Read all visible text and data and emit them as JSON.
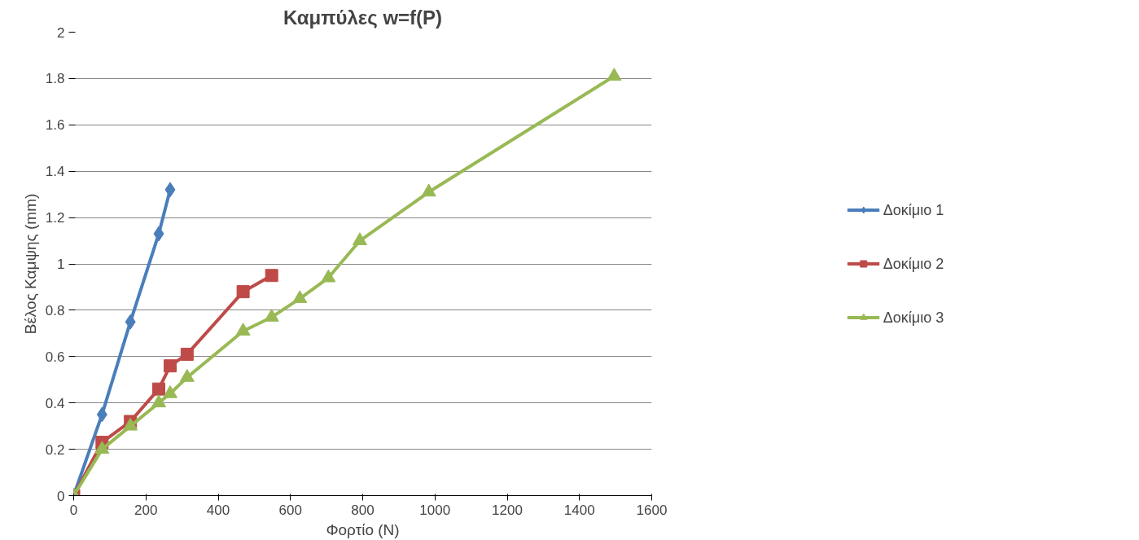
{
  "chart_data": {
    "type": "line",
    "title": "Καμπύλες w=f(P)",
    "xlabel": "Φορτίο (N)",
    "ylabel": "Βέλος Καμψης (mm)",
    "xlim": [
      0,
      1600
    ],
    "xticks": [
      0,
      200,
      400,
      600,
      800,
      1000,
      1200,
      1400,
      1600
    ],
    "ylim": [
      0,
      2
    ],
    "yticks": [
      0,
      0.2,
      0.4,
      0.6,
      0.8,
      1,
      1.2,
      1.4,
      1.6,
      1.8,
      2
    ],
    "grid": "y",
    "legend": "right",
    "series": [
      {
        "name": "Δοκίμιο 1",
        "color": "#4a7ebb",
        "marker": "diamond",
        "x": [
          0,
          78.5,
          157,
          235.5,
          267
        ],
        "values": [
          0,
          0.35,
          0.75,
          1.13,
          1.32
        ]
      },
      {
        "name": "Δοκίμιο 2",
        "color": "#be4b48",
        "marker": "square",
        "x": [
          0,
          78.5,
          157,
          235.5,
          267,
          314,
          469,
          548
        ],
        "values": [
          0,
          0.23,
          0.32,
          0.46,
          0.56,
          0.61,
          0.88,
          0.95
        ]
      },
      {
        "name": "Δοκίμιο 3",
        "color": "#98b954",
        "marker": "triangle",
        "x": [
          0,
          78.5,
          157,
          235.5,
          267,
          314,
          469,
          548,
          626,
          705,
          792,
          983,
          1496
        ],
        "values": [
          0,
          0.2,
          0.3,
          0.4,
          0.44,
          0.51,
          0.71,
          0.77,
          0.85,
          0.94,
          1.1,
          1.31,
          1.81
        ]
      }
    ]
  }
}
